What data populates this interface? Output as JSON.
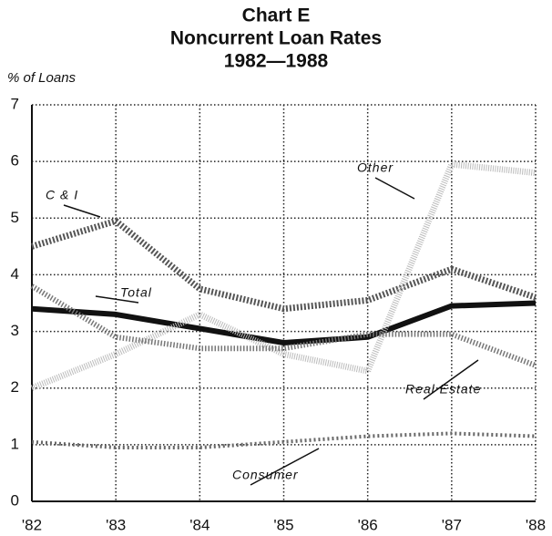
{
  "chart_data": {
    "type": "line",
    "title": "Chart E",
    "subtitle": "Noncurrent Loan Rates",
    "period": "1982—1988",
    "ylabel": "% of Loans",
    "x": [
      1982,
      1983,
      1984,
      1985,
      1986,
      1987,
      1988
    ],
    "xlim": [
      1982,
      1988
    ],
    "xticks": [
      {
        "value": 1982,
        "label": "'82"
      },
      {
        "value": 1983,
        "label": "'83"
      },
      {
        "value": 1984,
        "label": "'84"
      },
      {
        "value": 1985,
        "label": "'85"
      },
      {
        "value": 1986,
        "label": "'86"
      },
      {
        "value": 1987,
        "label": "'87"
      },
      {
        "value": 1988,
        "label": "'88"
      }
    ],
    "ylim": [
      0,
      7
    ],
    "yticks": [
      0,
      1,
      2,
      3,
      4,
      5,
      6,
      7
    ],
    "grid": true,
    "series": [
      {
        "name": "C & I",
        "color": "#555555",
        "values": [
          4.5,
          4.95,
          3.75,
          3.4,
          3.55,
          4.1,
          3.6
        ]
      },
      {
        "name": "Total",
        "color": "#111111",
        "values": [
          3.4,
          3.3,
          3.05,
          2.8,
          2.9,
          3.45,
          3.5
        ]
      },
      {
        "name": "Other",
        "color": "#bbbbbb",
        "values": [
          2.0,
          2.6,
          3.3,
          2.6,
          2.3,
          5.95,
          5.8
        ]
      },
      {
        "name": "Real Estate",
        "color": "#777777",
        "values": [
          3.8,
          2.9,
          2.7,
          2.7,
          2.95,
          2.95,
          2.4
        ]
      },
      {
        "name": "Consumer",
        "color": "#666666",
        "values": [
          1.05,
          0.95,
          0.95,
          1.05,
          1.15,
          1.2,
          1.15
        ]
      }
    ]
  }
}
